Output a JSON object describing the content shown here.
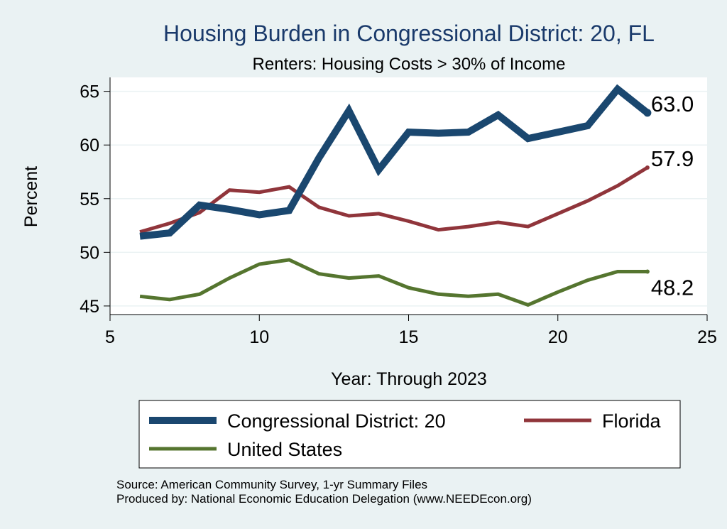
{
  "chart_data": {
    "type": "line",
    "title": "Housing Burden in Congressional District:  20, FL",
    "subtitle": "Renters: Housing Costs > 30% of Income",
    "xlabel": "Year: Through 2023",
    "ylabel": "Percent",
    "xlim": [
      5,
      25
    ],
    "ylim": [
      44.2,
      66.3
    ],
    "xticks": [
      5,
      10,
      15,
      20,
      25
    ],
    "yticks": [
      45,
      50,
      55,
      60,
      65
    ],
    "grid": true,
    "legend_position": "bottom",
    "series": [
      {
        "name": "Congressional District:  20",
        "color": "#1a476f",
        "x": [
          6,
          7,
          8,
          9,
          10,
          11,
          12,
          13,
          14,
          15,
          16,
          17,
          18,
          19,
          20,
          21,
          22,
          23
        ],
        "values": [
          51.5,
          51.8,
          54.4,
          54.0,
          53.5,
          53.9,
          58.8,
          63.2,
          57.7,
          61.2,
          61.1,
          61.2,
          62.8,
          60.6,
          61.2,
          61.8,
          65.2,
          63.0
        ],
        "end_label": "63.0"
      },
      {
        "name": "Florida",
        "color": "#90353b",
        "x": [
          6,
          7,
          8,
          9,
          10,
          11,
          12,
          13,
          14,
          15,
          16,
          17,
          18,
          19,
          20,
          21,
          22,
          23
        ],
        "values": [
          51.9,
          52.7,
          53.7,
          55.8,
          55.6,
          56.1,
          54.2,
          53.4,
          53.6,
          52.9,
          52.1,
          52.4,
          52.8,
          52.4,
          53.6,
          54.8,
          56.2,
          57.9
        ],
        "end_label": "57.9"
      },
      {
        "name": "United States",
        "color": "#55752f",
        "x": [
          6,
          7,
          8,
          9,
          10,
          11,
          12,
          13,
          14,
          15,
          16,
          17,
          18,
          19,
          20,
          21,
          22,
          23
        ],
        "values": [
          45.9,
          45.6,
          46.1,
          47.6,
          48.9,
          49.3,
          48.0,
          47.6,
          47.8,
          46.7,
          46.1,
          45.9,
          46.1,
          45.1,
          46.3,
          47.4,
          48.2,
          48.2
        ],
        "end_label": "48.2"
      }
    ],
    "notes": [
      "Source: American Community Survey, 1-yr Summary Files",
      "Produced by: National Economic Education Delegation (www.NEEDEcon.org)"
    ]
  }
}
